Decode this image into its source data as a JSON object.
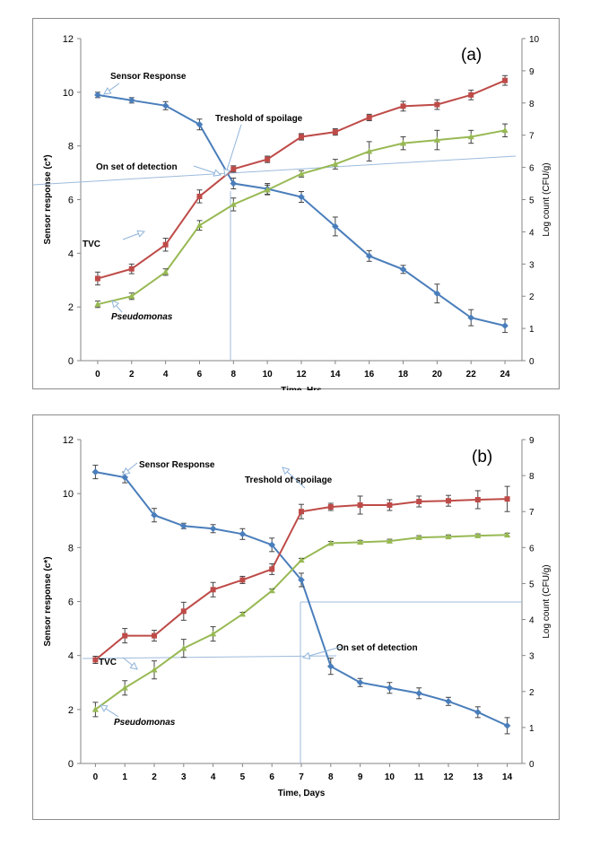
{
  "chart_data": [
    {
      "type": "line",
      "panel_label": "(a)",
      "xlabel": "Time, Hrs",
      "ylabel_left": "Sensor response (c*)",
      "ylabel_right": "Log count (CFU/g)",
      "x": [
        0,
        2,
        4,
        6,
        8,
        10,
        12,
        14,
        16,
        18,
        20,
        22,
        24
      ],
      "xlim": [
        -1,
        25
      ],
      "ylim_left": [
        0,
        12
      ],
      "ylim_right": [
        0,
        10
      ],
      "yticks_left": [
        0,
        2,
        4,
        6,
        8,
        10,
        12
      ],
      "yticks_right": [
        0,
        1,
        2,
        3,
        4,
        5,
        6,
        7,
        8,
        9,
        10
      ],
      "grid": false,
      "series": [
        {
          "name": "Sensor Response",
          "axis": "left",
          "color": "#4a7ebb",
          "marker": "diamond",
          "values": [
            9.9,
            9.7,
            9.5,
            8.8,
            6.6,
            6.4,
            6.1,
            5.0,
            3.9,
            3.4,
            2.5,
            1.6,
            1.3
          ],
          "errors": [
            0.1,
            0.1,
            0.15,
            0.2,
            0.2,
            0.2,
            0.2,
            0.35,
            0.2,
            0.15,
            0.35,
            0.3,
            0.25
          ]
        },
        {
          "name": "TVC",
          "axis": "right",
          "color": "#be4b48",
          "marker": "square",
          "values": [
            2.55,
            2.85,
            3.6,
            5.1,
            5.95,
            6.25,
            6.95,
            7.1,
            7.55,
            7.9,
            7.95,
            8.25,
            8.7
          ],
          "errors": [
            0.2,
            0.15,
            0.2,
            0.2,
            0.1,
            0.1,
            0.1,
            0.1,
            0.1,
            0.15,
            0.15,
            0.15,
            0.15
          ]
        },
        {
          "name": "Pseudomonas",
          "axis": "right",
          "color": "#98b954",
          "marker": "triangle",
          "values": [
            1.75,
            2.0,
            2.75,
            4.2,
            4.85,
            5.3,
            5.8,
            6.1,
            6.5,
            6.75,
            6.85,
            6.95,
            7.15
          ],
          "errors": [
            0.1,
            0.1,
            0.1,
            0.15,
            0.2,
            0.15,
            0.1,
            0.15,
            0.3,
            0.2,
            0.3,
            0.2,
            0.2
          ]
        }
      ],
      "annotations": [
        {
          "text": "Sensor Response",
          "bold": true,
          "italic": false
        },
        {
          "text": "Treshold of spoilage",
          "bold": true,
          "italic": false
        },
        {
          "text": "On set of detection",
          "bold": true,
          "italic": false
        },
        {
          "text": "TVC",
          "bold": true,
          "italic": false
        },
        {
          "text": "Pseudomonas",
          "bold": true,
          "italic": true
        }
      ]
    },
    {
      "type": "line",
      "panel_label": "(b)",
      "xlabel": "Time, Days",
      "ylabel_left": "Sensor response (c*)",
      "ylabel_right": "Log count (CFU/g)",
      "x": [
        0,
        1,
        2,
        3,
        4,
        5,
        6,
        7,
        8,
        9,
        10,
        11,
        12,
        13,
        14
      ],
      "xlim": [
        -0.5,
        14.5
      ],
      "ylim_left": [
        0,
        12
      ],
      "ylim_right": [
        0,
        9
      ],
      "yticks_left": [
        0,
        2,
        4,
        6,
        8,
        10,
        12
      ],
      "yticks_right": [
        0,
        1,
        2,
        3,
        4,
        5,
        6,
        7,
        8,
        9
      ],
      "grid": false,
      "series": [
        {
          "name": "Sensor Response",
          "axis": "left",
          "color": "#4a7ebb",
          "marker": "diamond",
          "values": [
            10.8,
            10.6,
            9.2,
            8.8,
            8.7,
            8.5,
            8.1,
            6.8,
            3.6,
            3.0,
            2.8,
            2.6,
            2.3,
            1.9,
            1.4
          ],
          "errors": [
            0.25,
            0.2,
            0.25,
            0.1,
            0.15,
            0.2,
            0.25,
            0.25,
            0.3,
            0.15,
            0.2,
            0.2,
            0.15,
            0.2,
            0.3
          ]
        },
        {
          "name": "TVC",
          "axis": "right",
          "color": "#be4b48",
          "marker": "square",
          "values": [
            2.88,
            3.55,
            3.55,
            4.23,
            4.83,
            5.1,
            5.4,
            7.0,
            7.13,
            7.18,
            7.18,
            7.28,
            7.3,
            7.33,
            7.35
          ],
          "errors": [
            0.1,
            0.2,
            0.15,
            0.25,
            0.2,
            0.1,
            0.15,
            0.2,
            0.1,
            0.25,
            0.15,
            0.15,
            0.15,
            0.25,
            0.35
          ]
        },
        {
          "name": "Pseudomonas",
          "axis": "right",
          "color": "#98b954",
          "marker": "triangle",
          "values": [
            1.5,
            2.1,
            2.6,
            3.2,
            3.6,
            4.15,
            4.8,
            5.65,
            6.12,
            6.15,
            6.18,
            6.28,
            6.3,
            6.33,
            6.35
          ],
          "errors": [
            0.2,
            0.2,
            0.25,
            0.25,
            0.2,
            0.05,
            0.05,
            0.05,
            0.05,
            0.05,
            0.05,
            0.05,
            0.05,
            0.05,
            0.05
          ]
        }
      ],
      "annotations": [
        {
          "text": "Sensor Response",
          "bold": true,
          "italic": false
        },
        {
          "text": "Treshold of spoilage",
          "bold": true,
          "italic": false
        },
        {
          "text": "On set of detection",
          "bold": true,
          "italic": false
        },
        {
          "text": "TVC",
          "bold": true,
          "italic": false
        },
        {
          "text": "Pseudomonas",
          "bold": true,
          "italic": true
        }
      ]
    }
  ]
}
